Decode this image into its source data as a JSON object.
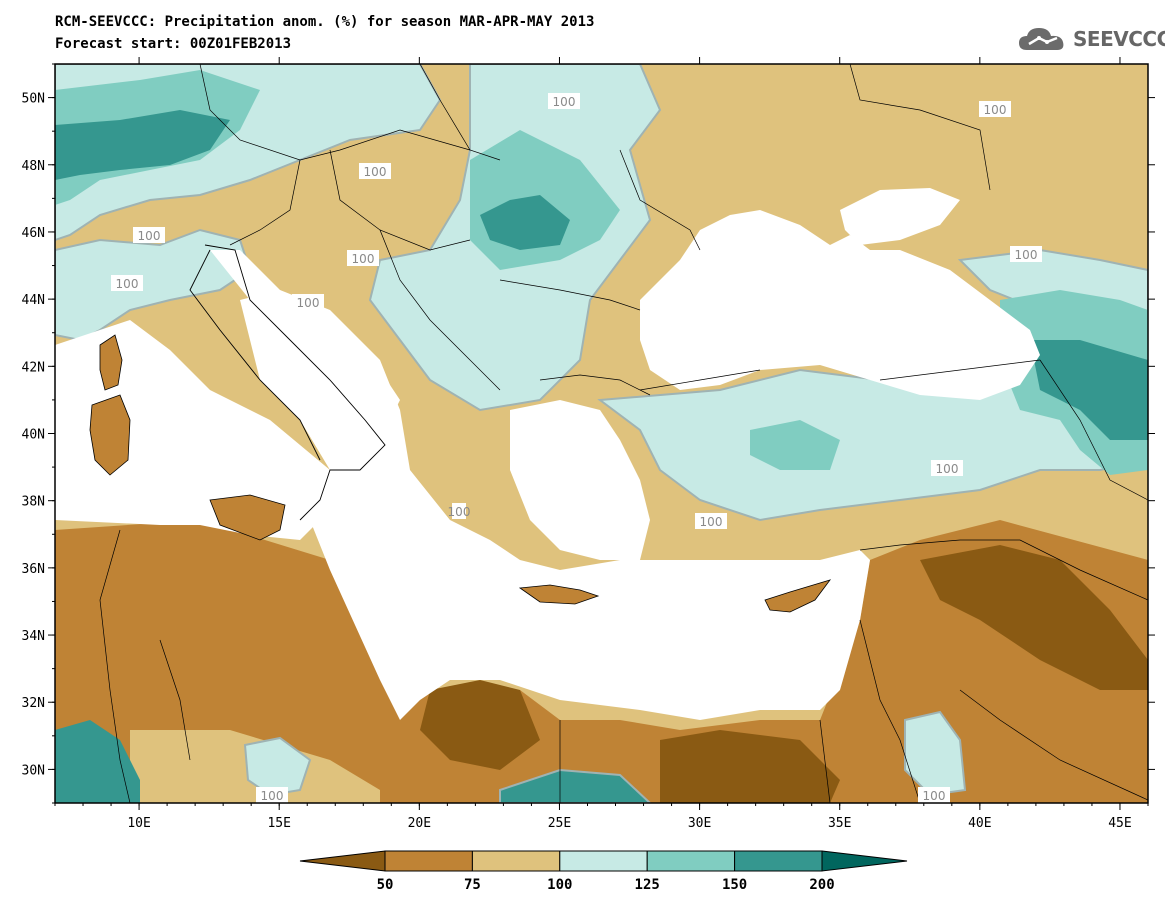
{
  "header": {
    "title_line1": "RCM-SEEVCCC: Precipitation anom. (%) for season MAR-APR-MAY 2013",
    "title_line2": "Forecast start: 00Z01FEB2013"
  },
  "logo": {
    "text": "SEEVCCC",
    "icon": "cloud-logo-icon"
  },
  "map": {
    "lon_range": [
      7,
      46
    ],
    "lat_range": [
      29,
      51
    ],
    "lon_ticks": [
      "10E",
      "15E",
      "20E",
      "25E",
      "30E",
      "35E",
      "40E",
      "45E"
    ],
    "lat_ticks": [
      "50N",
      "48N",
      "46N",
      "44N",
      "42N",
      "40N",
      "38N",
      "36N",
      "34N",
      "32N",
      "30N"
    ],
    "contour_labels": [
      "100",
      "100",
      "100",
      "100",
      "100",
      "100",
      "100",
      "100",
      "100",
      "100",
      "100",
      "100",
      "100"
    ]
  },
  "colorbar": {
    "colors": [
      "#8a5a13",
      "#bf8335",
      "#dfc27d",
      "#c7eae5",
      "#80cdc1",
      "#35978f",
      "#01665e"
    ],
    "levels": [
      "50",
      "75",
      "100",
      "125",
      "150",
      "200"
    ]
  }
}
